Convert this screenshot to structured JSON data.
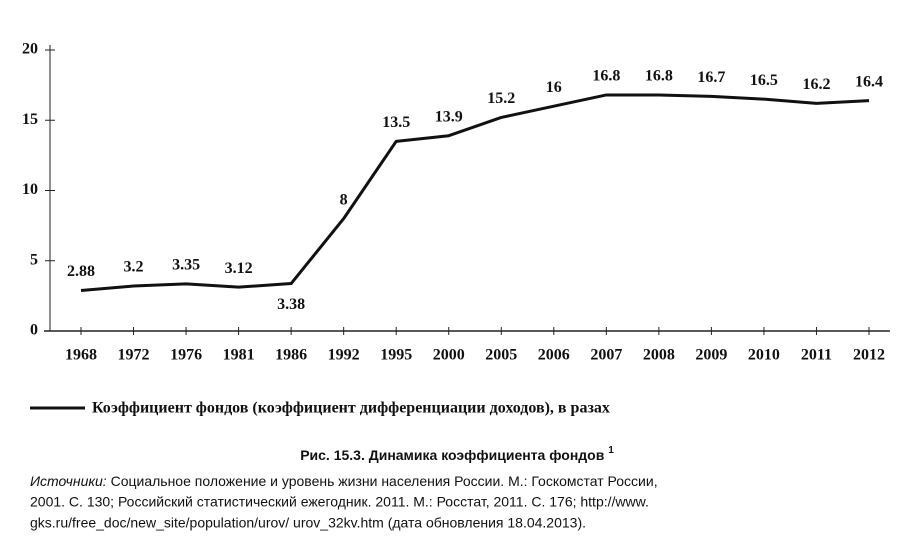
{
  "chart_data": {
    "type": "line",
    "categories": [
      "1968",
      "1972",
      "1976",
      "1981",
      "1986",
      "1992",
      "1995",
      "2000",
      "2005",
      "2006",
      "2007",
      "2008",
      "2009",
      "2010",
      "2011",
      "2012"
    ],
    "series": [
      {
        "name": "Коэффициент фондов (коэффициент дифференциации доходов), в разах",
        "color": "#111111",
        "values": [
          2.88,
          3.2,
          3.35,
          3.12,
          3.38,
          8,
          13.5,
          13.9,
          15.2,
          16,
          16.8,
          16.8,
          16.7,
          16.5,
          16.2,
          16.4
        ]
      }
    ],
    "ylim": [
      0,
      20
    ],
    "yticks": [
      0,
      5,
      10,
      15,
      20
    ],
    "grid": false,
    "legend": "bottom"
  },
  "caption": {
    "number": "Рис. 15.3.",
    "text": "Динамика коэффициента фондов",
    "note": "1"
  },
  "sources": {
    "label": "Источники:",
    "lines": [
      "Социальное положение и уровень жизни населения России. М.: Госкомстат России,",
      "2001. С. 130; Российский статистический ежегодник. 2011. М.: Росстат, 2011. С. 176; http://www.",
      "gks.ru/free_doc/new_site/population/urov/ urov_32kv.htm (дата обновления 18.04.2013)."
    ]
  }
}
